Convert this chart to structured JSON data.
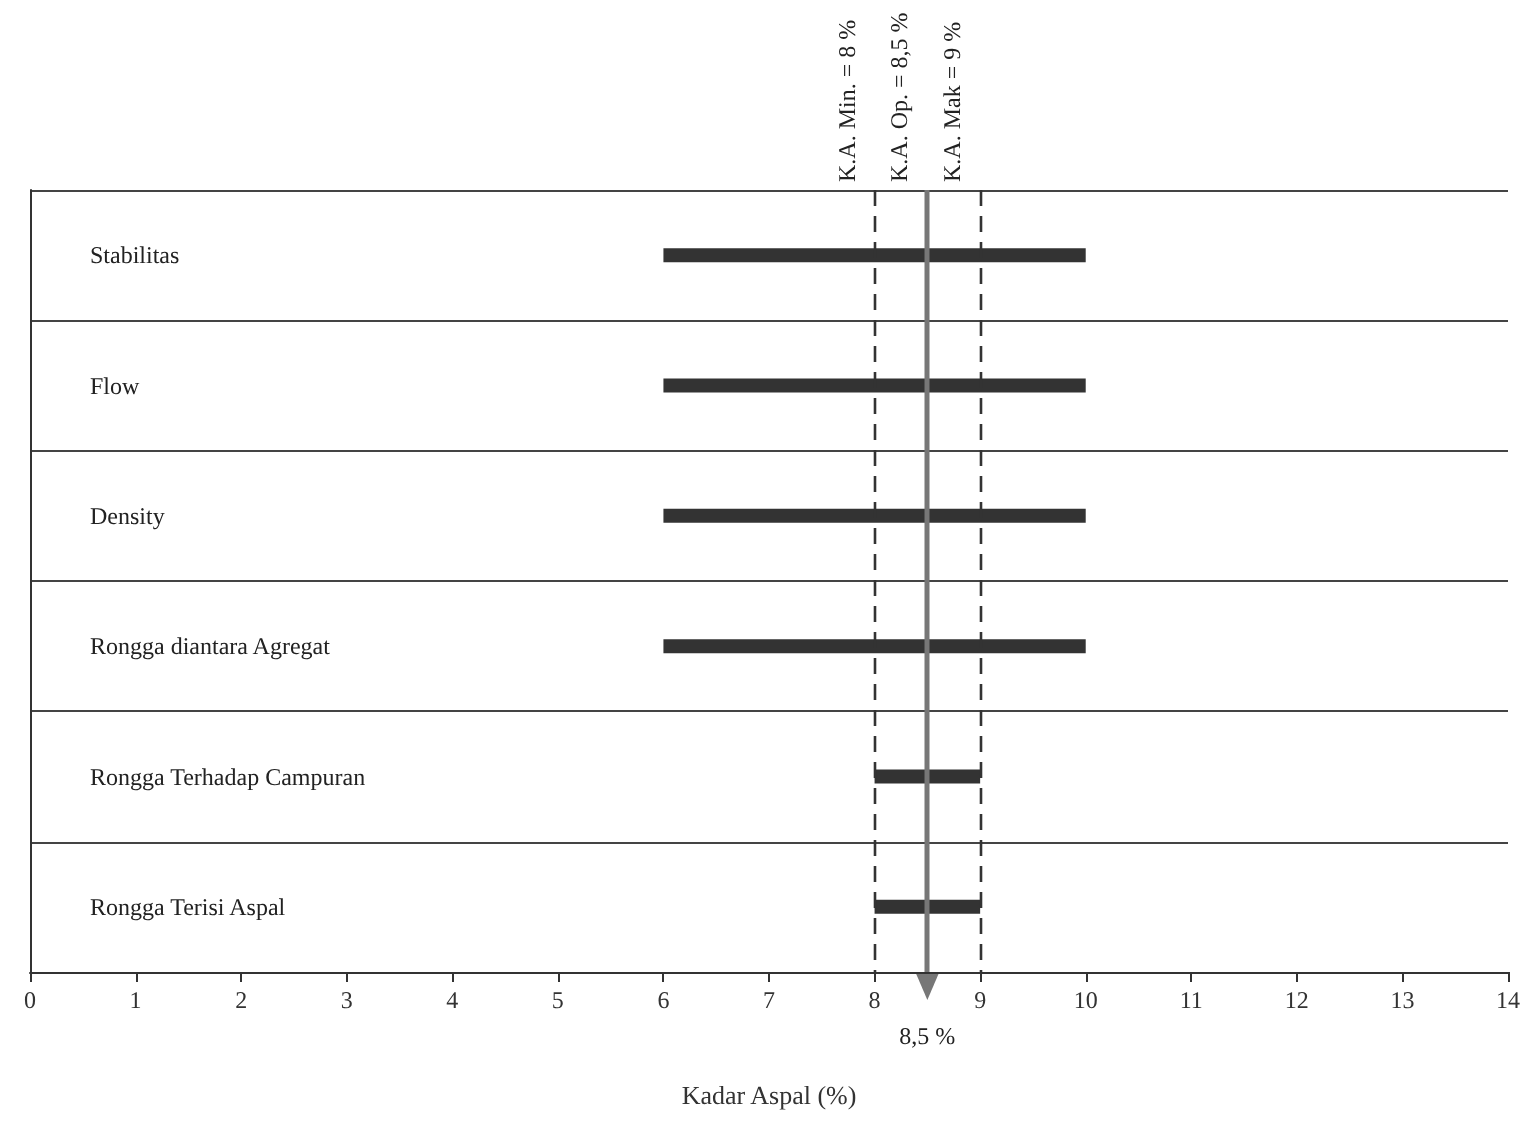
{
  "chart_data": {
    "type": "bar",
    "orientation": "horizontal",
    "xlabel": "Kadar Aspal (%)",
    "categories": [
      "Stabilitas",
      "Flow",
      "Density",
      "Rongga diantara Agregat",
      "Rongga Terhadap Campuran",
      "Rongga Terisi Aspal"
    ],
    "base": [
      6,
      6,
      6,
      6,
      8,
      8
    ],
    "values": [
      4,
      4,
      4,
      4,
      1,
      1
    ],
    "color": "#333333",
    "xlim": [
      0,
      14
    ],
    "xticks": [
      0,
      1,
      2,
      3,
      4,
      5,
      6,
      7,
      8,
      9,
      10,
      11,
      12,
      13,
      14
    ],
    "grid": "y",
    "ref_lines": [
      {
        "axis": "x",
        "value": 8,
        "label": "K.A. Min. = 8 %",
        "line_style": "dashed",
        "color": "#333333"
      },
      {
        "axis": "x",
        "value": 8.5,
        "label": "K.A. Op. = 8,5 %",
        "line_style": "solid",
        "color": "#777777"
      },
      {
        "axis": "x",
        "value": 9,
        "label": "K.A. Mak = 9 %",
        "line_style": "dashed",
        "color": "#333333"
      }
    ],
    "annotations": [
      "8,5 %"
    ]
  }
}
